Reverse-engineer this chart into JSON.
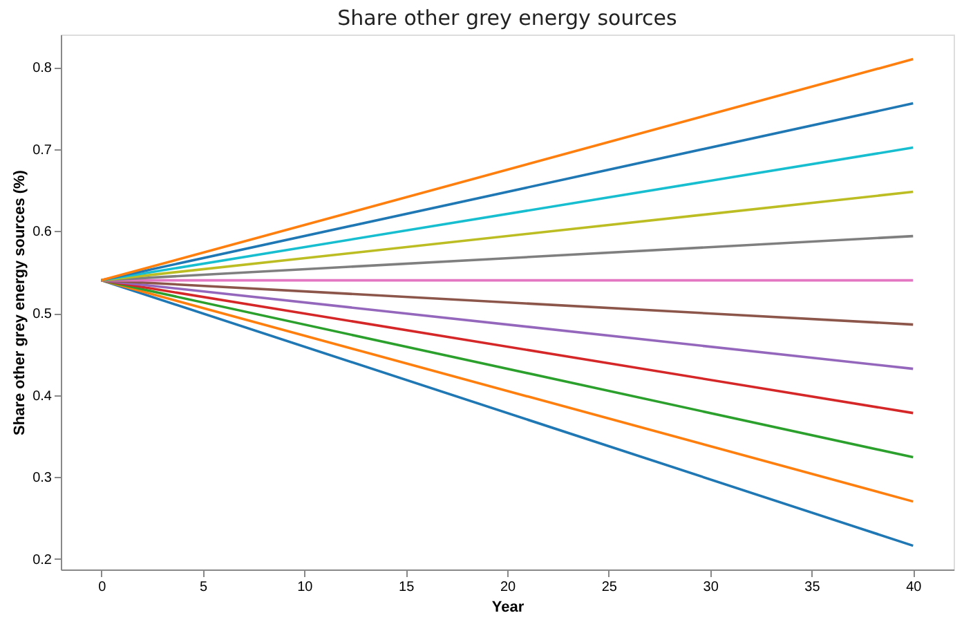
{
  "chart_data": {
    "type": "line",
    "title": "Share other grey energy sources",
    "xlabel": "Year",
    "ylabel": "Share other grey energy sources (%)",
    "x": [
      0,
      40
    ],
    "series": [
      {
        "color": "#1f77b4",
        "values": [
          0.54,
          0.216
        ]
      },
      {
        "color": "#ff7f0e",
        "values": [
          0.54,
          0.27
        ]
      },
      {
        "color": "#2ca02c",
        "values": [
          0.54,
          0.324
        ]
      },
      {
        "color": "#d62728",
        "values": [
          0.54,
          0.378
        ]
      },
      {
        "color": "#9467bd",
        "values": [
          0.54,
          0.432
        ]
      },
      {
        "color": "#8c564b",
        "values": [
          0.54,
          0.486
        ]
      },
      {
        "color": "#e377c2",
        "values": [
          0.54,
          0.54
        ]
      },
      {
        "color": "#7f7f7f",
        "values": [
          0.54,
          0.594
        ]
      },
      {
        "color": "#bcbd22",
        "values": [
          0.54,
          0.648
        ]
      },
      {
        "color": "#17becf",
        "values": [
          0.54,
          0.702
        ]
      },
      {
        "color": "#1f77b4",
        "values": [
          0.54,
          0.756
        ]
      },
      {
        "color": "#ff7f0e",
        "values": [
          0.54,
          0.81
        ]
      }
    ],
    "xlim": [
      -2,
      42
    ],
    "xticks": [
      0,
      5,
      10,
      15,
      20,
      25,
      30,
      35,
      40
    ],
    "ylim": [
      0.187,
      0.84
    ],
    "yticks": [
      0.2,
      0.3,
      0.4,
      0.5,
      0.6,
      0.7,
      0.8
    ],
    "grid": false,
    "legend": false,
    "marker": "none",
    "line_style": "solid"
  }
}
